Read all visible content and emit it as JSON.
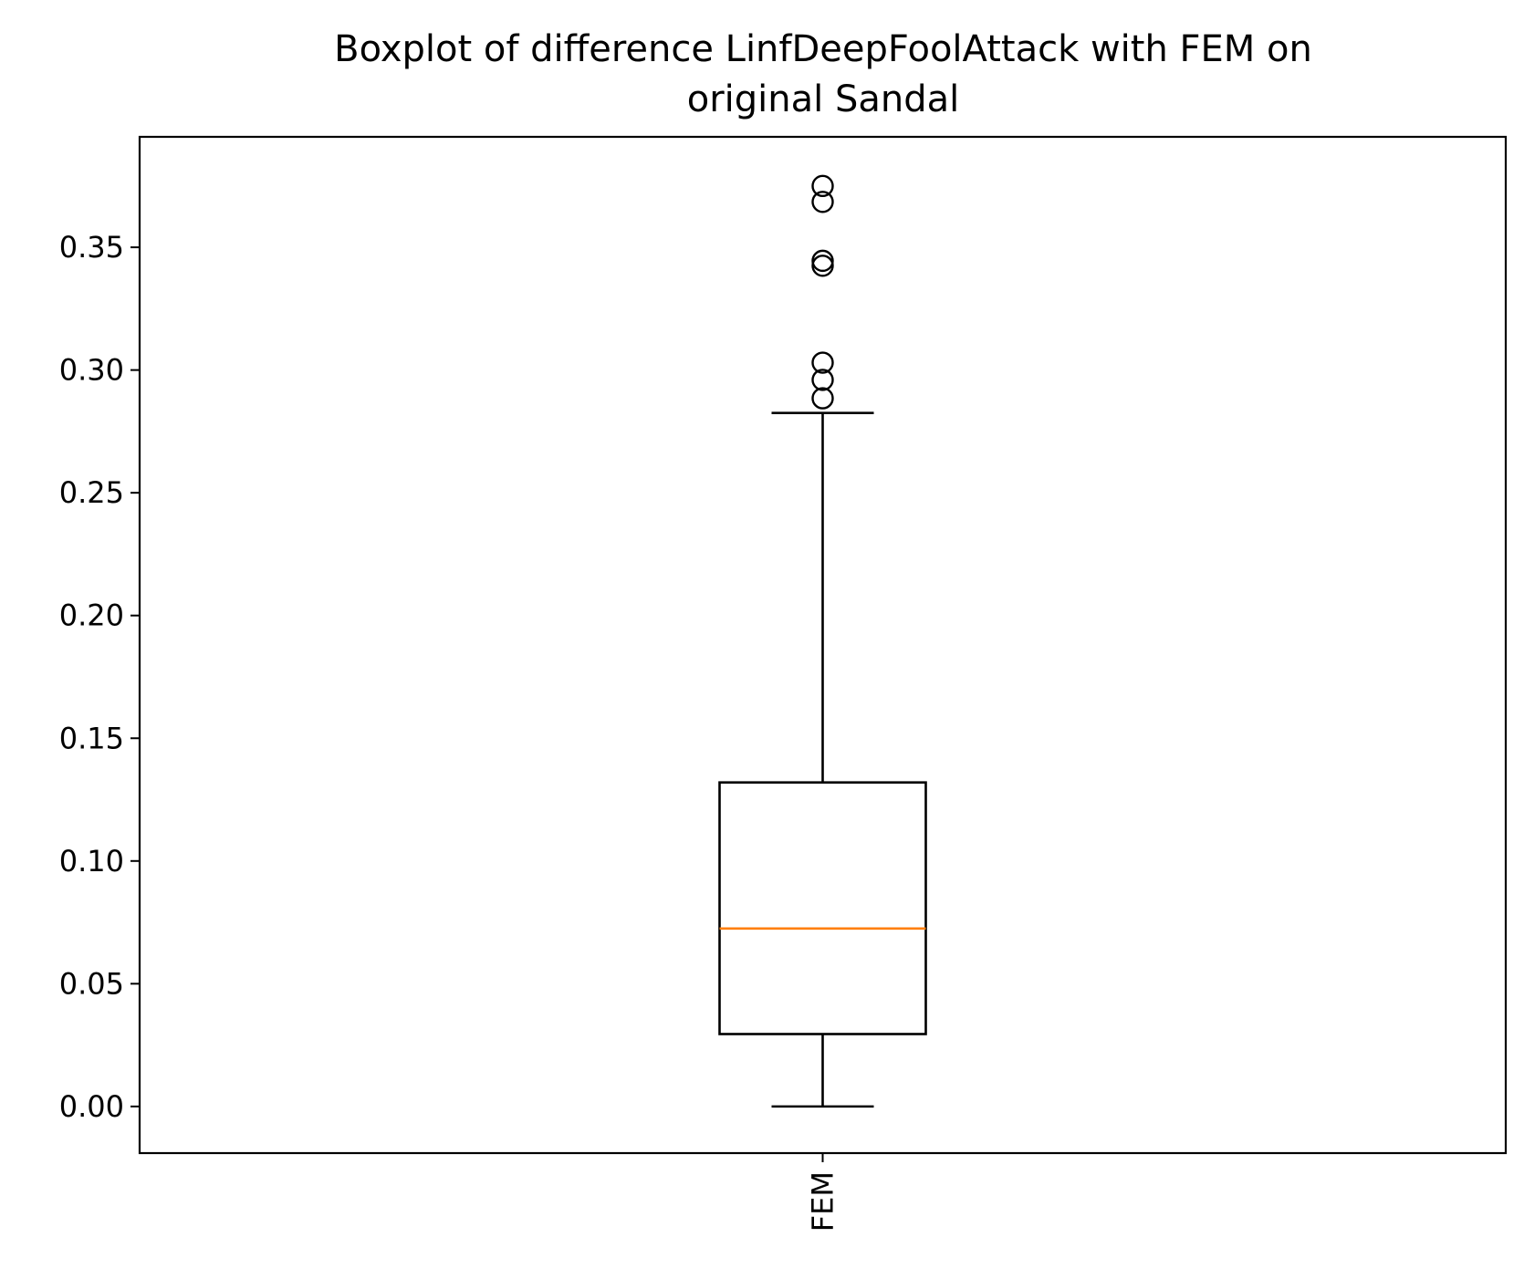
{
  "chart_data": {
    "type": "boxplot",
    "title_lines": [
      "Boxplot of difference LinfDeepFoolAttack with FEM on",
      "original Sandal"
    ],
    "xlabel": "",
    "ylabel": "",
    "categories": [
      "FEM"
    ],
    "ylim": [
      -0.019,
      0.395
    ],
    "yticks": [
      0.0,
      0.05,
      0.1,
      0.15,
      0.2,
      0.25,
      0.3,
      0.35
    ],
    "ytick_labels": [
      "0.00",
      "0.05",
      "0.10",
      "0.15",
      "0.20",
      "0.25",
      "0.30",
      "0.35"
    ],
    "boxes": [
      {
        "label": "FEM",
        "whisker_low": 0.0,
        "q1": 0.0295,
        "median": 0.0725,
        "q3": 0.132,
        "whisker_high": 0.2825,
        "outliers": [
          0.2885,
          0.296,
          0.303,
          0.3425,
          0.3445,
          0.3685,
          0.375
        ]
      }
    ],
    "grid": false,
    "legend": "none",
    "colors": {
      "box": "#000000",
      "median": "#ff7f0e",
      "outlier": "#000000"
    }
  }
}
